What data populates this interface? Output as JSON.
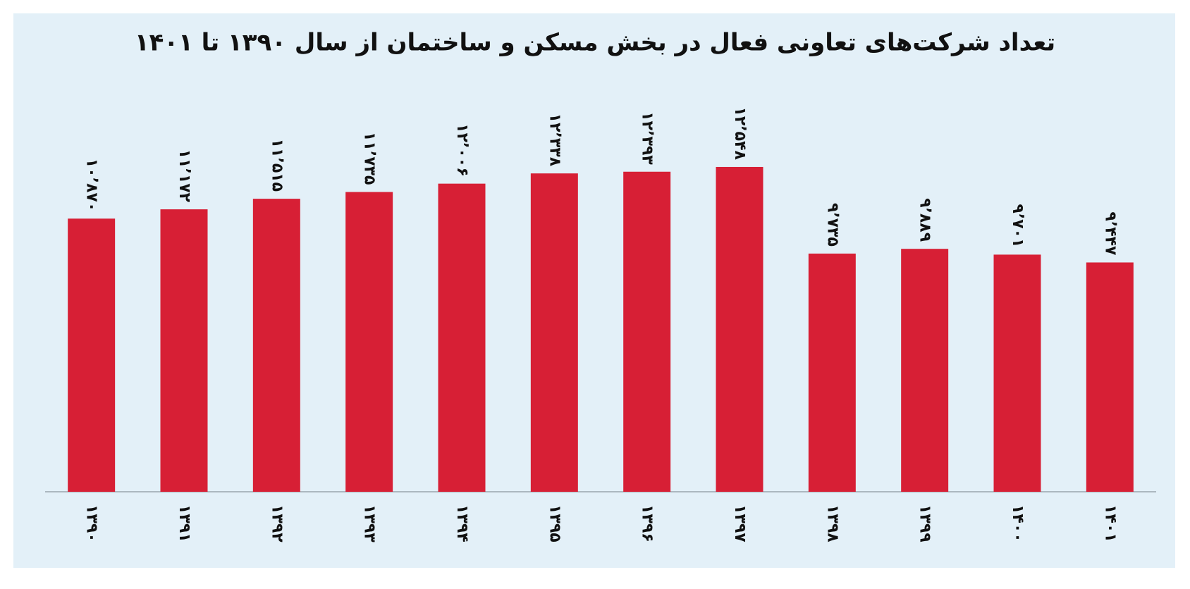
{
  "chart_data": {
    "type": "bar",
    "title": "تعداد شرکت‌های تعاونی فعال در بخش مسکن و ساختمان از سال ۱۳۹۰ تا ۱۴۰۱",
    "categories": [
      "۱۳۹۰",
      "۱۳۹۱",
      "۱۳۹۲",
      "۱۳۹۳",
      "۱۳۹۴",
      "۱۳۹۵",
      "۱۳۹۶",
      "۱۳۹۷",
      "۱۳۹۸",
      "۱۳۹۹",
      "۱۴۰۰",
      "۱۴۰۱"
    ],
    "values": [
      10870,
      11172,
      11515,
      11735,
      12006,
      12338,
      12393,
      12548,
      9735,
      9889,
      9701,
      9447
    ],
    "value_labels": [
      "۱۰٬۸۷۰",
      "۱۱٬۱۷۲",
      "۱۱٬۵۱۵",
      "۱۱٬۷۳۵",
      "۱۲٬۰۰۶",
      "۱۲٬۳۳۸",
      "۱۲٬۳۹۳",
      "۱۲٬۵۴۸",
      "۹٬۷۳۵",
      "۹٬۸۸۹",
      "۹٬۷۰۱",
      "۹٬۴۴۷"
    ],
    "color": "#d71f35",
    "ylim": [
      2000,
      14000
    ]
  }
}
